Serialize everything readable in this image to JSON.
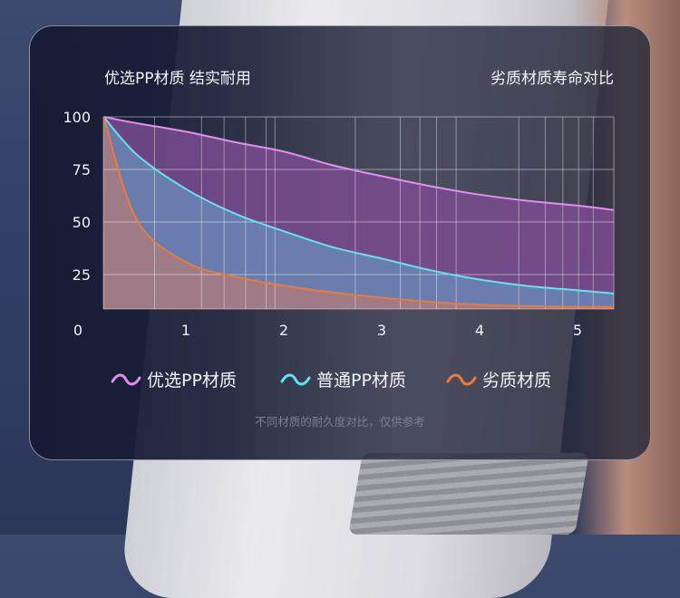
{
  "header": {
    "left_title": "优选PP材质 结实耐用",
    "right_title": "劣质材质寿命对比"
  },
  "footnote": "不同材质的耐久度对比，仅供参考",
  "chart_data": {
    "type": "area",
    "title": "",
    "xlabel": "",
    "ylabel": "",
    "xlim": [
      0.16,
      5.37
    ],
    "ylim": [
      8.6,
      100
    ],
    "x_ticks": [
      "1",
      "2",
      "3",
      "4",
      "5"
    ],
    "y_ticks": [
      "100",
      "75",
      "50",
      "25"
    ],
    "origin_label": "0",
    "grid": true,
    "vertical_gridlines": [
      0.68,
      1.16,
      1.39,
      1.61,
      1.82,
      1.91,
      2.73,
      3.19,
      3.39,
      3.56,
      3.76,
      4.4,
      4.67,
      4.85,
      5.01,
      5.16
    ],
    "legend_position": "bottom",
    "x": [
      0.16,
      0.5,
      1,
      1.5,
      2,
      2.5,
      3,
      3.5,
      4,
      4.5,
      5,
      5.37
    ],
    "series": [
      {
        "name": "优选PP材质",
        "color": "#e48cf0",
        "fill": "#7a4c90",
        "values": [
          100,
          97,
          93,
          88,
          83.5,
          77,
          71.8,
          67,
          63,
          60,
          57.8,
          55.7
        ]
      },
      {
        "name": "普通PP材质",
        "color": "#5ee6ee",
        "fill": "#6a86b4",
        "values": [
          100,
          82,
          65.7,
          54,
          45.6,
          38,
          32.6,
          27,
          22.6,
          19.5,
          17.5,
          16
        ]
      },
      {
        "name": "劣质材质",
        "color": "#f07a34",
        "fill": "#a87a80",
        "values": [
          100,
          51,
          31,
          24,
          19.7,
          16.5,
          14,
          12,
          10.6,
          10,
          9.6,
          9.6
        ]
      }
    ]
  }
}
